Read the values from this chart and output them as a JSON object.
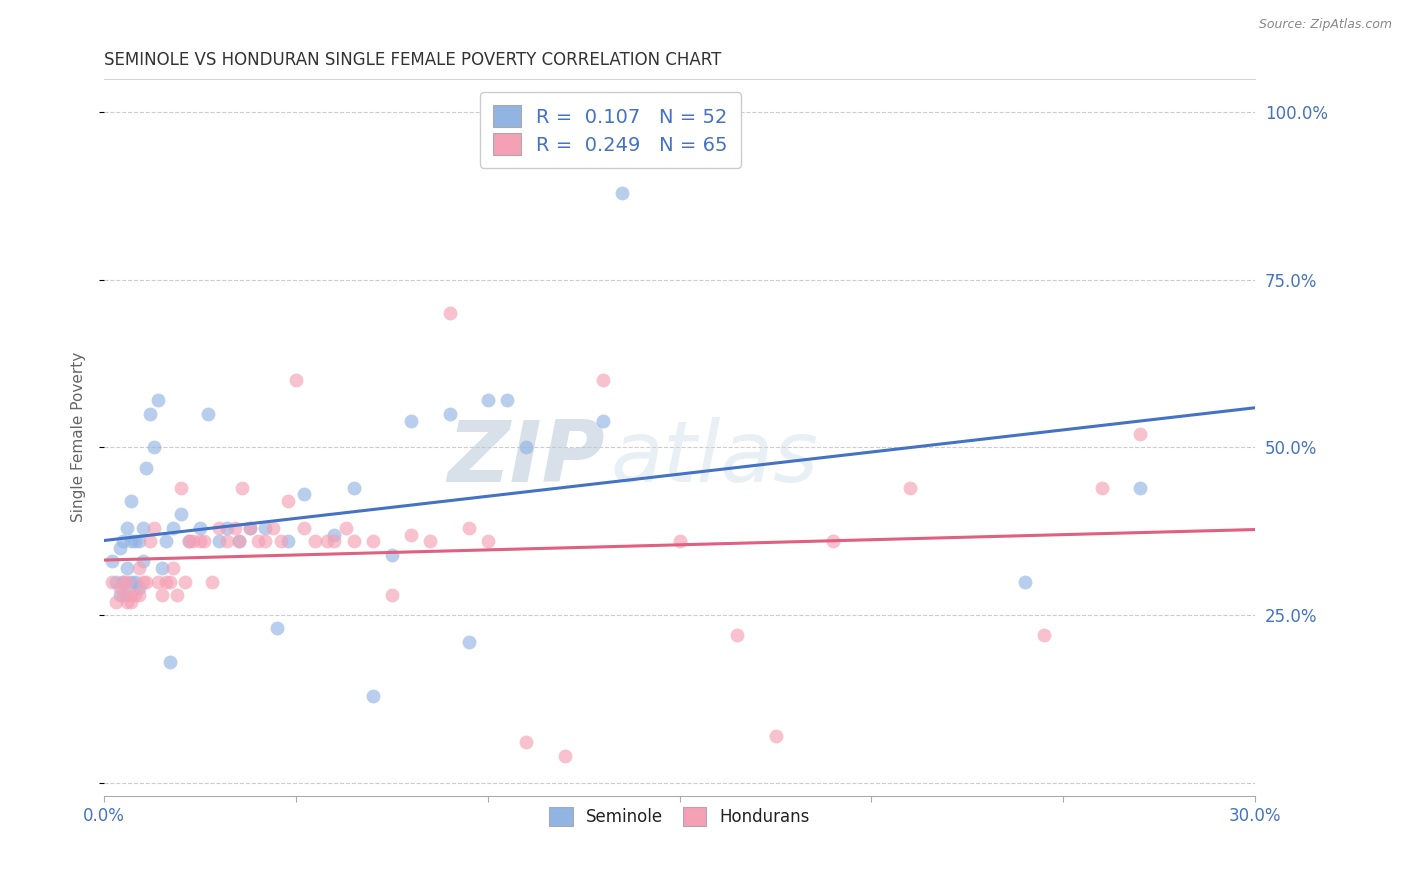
{
  "title": "SEMINOLE VS HONDURAN SINGLE FEMALE POVERTY CORRELATION CHART",
  "source": "Source: ZipAtlas.com",
  "ylabel": "Single Female Poverty",
  "yticks": [
    0.0,
    0.25,
    0.5,
    0.75,
    1.0
  ],
  "ytick_labels": [
    "",
    "25.0%",
    "50.0%",
    "75.0%",
    "100.0%"
  ],
  "xlim": [
    0.0,
    0.3
  ],
  "ylim": [
    -0.02,
    1.05
  ],
  "seminole_R": 0.107,
  "seminole_N": 52,
  "honduran_R": 0.249,
  "honduran_N": 65,
  "seminole_color": "#92b4e3",
  "honduran_color": "#f4a0b5",
  "trendline_seminole_color": "#4472c4",
  "trendline_honduran_color": "#e06080",
  "legend_label_seminole": "Seminole",
  "legend_label_honduran": "Hondurans",
  "seminole_x": [
    0.002,
    0.003,
    0.004,
    0.004,
    0.005,
    0.005,
    0.006,
    0.006,
    0.006,
    0.007,
    0.007,
    0.007,
    0.008,
    0.008,
    0.009,
    0.009,
    0.01,
    0.01,
    0.011,
    0.012,
    0.013,
    0.014,
    0.015,
    0.016,
    0.017,
    0.018,
    0.02,
    0.022,
    0.025,
    0.027,
    0.03,
    0.032,
    0.035,
    0.038,
    0.042,
    0.045,
    0.048,
    0.052,
    0.06,
    0.065,
    0.07,
    0.075,
    0.08,
    0.09,
    0.095,
    0.1,
    0.105,
    0.11,
    0.13,
    0.135,
    0.24,
    0.27
  ],
  "seminole_y": [
    0.33,
    0.3,
    0.28,
    0.35,
    0.3,
    0.36,
    0.28,
    0.32,
    0.38,
    0.3,
    0.36,
    0.42,
    0.3,
    0.36,
    0.29,
    0.36,
    0.38,
    0.33,
    0.47,
    0.55,
    0.5,
    0.57,
    0.32,
    0.36,
    0.18,
    0.38,
    0.4,
    0.36,
    0.38,
    0.55,
    0.36,
    0.38,
    0.36,
    0.38,
    0.38,
    0.23,
    0.36,
    0.43,
    0.37,
    0.44,
    0.13,
    0.34,
    0.54,
    0.55,
    0.21,
    0.57,
    0.57,
    0.5,
    0.54,
    0.88,
    0.3,
    0.44
  ],
  "honduran_x": [
    0.002,
    0.003,
    0.004,
    0.005,
    0.005,
    0.006,
    0.006,
    0.007,
    0.007,
    0.008,
    0.009,
    0.009,
    0.01,
    0.011,
    0.012,
    0.013,
    0.014,
    0.015,
    0.016,
    0.017,
    0.018,
    0.019,
    0.02,
    0.021,
    0.022,
    0.023,
    0.025,
    0.026,
    0.028,
    0.03,
    0.032,
    0.034,
    0.035,
    0.036,
    0.038,
    0.04,
    0.042,
    0.044,
    0.046,
    0.048,
    0.05,
    0.052,
    0.055,
    0.058,
    0.06,
    0.063,
    0.065,
    0.07,
    0.075,
    0.08,
    0.085,
    0.09,
    0.095,
    0.1,
    0.11,
    0.12,
    0.13,
    0.15,
    0.165,
    0.175,
    0.19,
    0.21,
    0.245,
    0.26,
    0.27
  ],
  "honduran_y": [
    0.3,
    0.27,
    0.29,
    0.28,
    0.3,
    0.27,
    0.3,
    0.27,
    0.28,
    0.28,
    0.28,
    0.32,
    0.3,
    0.3,
    0.36,
    0.38,
    0.3,
    0.28,
    0.3,
    0.3,
    0.32,
    0.28,
    0.44,
    0.3,
    0.36,
    0.36,
    0.36,
    0.36,
    0.3,
    0.38,
    0.36,
    0.38,
    0.36,
    0.44,
    0.38,
    0.36,
    0.36,
    0.38,
    0.36,
    0.42,
    0.6,
    0.38,
    0.36,
    0.36,
    0.36,
    0.38,
    0.36,
    0.36,
    0.28,
    0.37,
    0.36,
    0.7,
    0.38,
    0.36,
    0.06,
    0.04,
    0.6,
    0.36,
    0.22,
    0.07,
    0.36,
    0.44,
    0.22,
    0.44,
    0.52
  ],
  "watermark_zip": "ZIP",
  "watermark_atlas": "atlas",
  "background_color": "#ffffff",
  "grid_color": "#cccccc",
  "title_color": "#333333",
  "axis_label_color": "#666666",
  "right_ytick_color": "#4472c4",
  "xtick_label_color": "#4472c4",
  "marker_size": 100,
  "marker_alpha": 0.65,
  "legend_fontsize": 14,
  "title_fontsize": 12,
  "ylabel_fontsize": 11
}
